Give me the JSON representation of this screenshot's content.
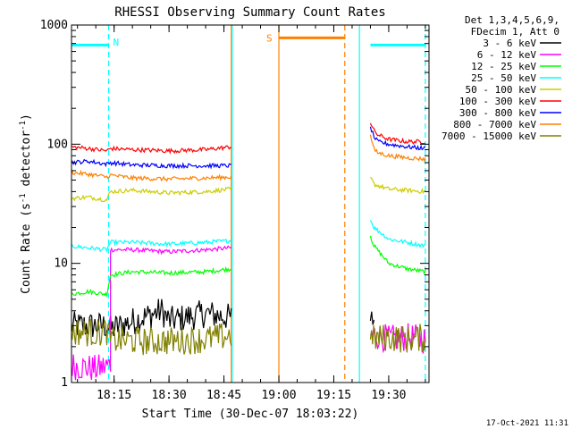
{
  "chart_data": {
    "type": "line",
    "title": "RHESSI Observing Summary Count Rates",
    "xlabel": "Start Time (30-Dec-07 18:03:22)",
    "ylabel_parts": [
      "Count Rate (s",
      "-1",
      " detector",
      "-1",
      ")"
    ],
    "yscale": "log",
    "ylim": [
      1,
      1000
    ],
    "xlim": [
      "18:03:22",
      "19:41:00"
    ],
    "x_ticks": [
      "18:15",
      "18:30",
      "18:45",
      "19:00",
      "19:15",
      "19:30"
    ],
    "y_ticks": [
      "1",
      "10",
      "100",
      "1000"
    ],
    "legend_position": "top-right",
    "legend_header": [
      "Det 1,3,4,5,6,9,",
      "FDecim 1, Att 0"
    ],
    "series": [
      {
        "name": "3 - 6 keV",
        "color": "#000000",
        "segments": [
          {
            "x": [
              "18:03",
              "18:13",
              "18:14",
              "18:28",
              "18:30",
              "18:40",
              "18:47"
            ],
            "y": [
              3.0,
              3.0,
              2.8,
              4.0,
              3.3,
              3.8,
              3.5
            ]
          },
          {
            "x": [
              "19:25",
              "19:26"
            ],
            "y": [
              3.3,
              3.4
            ]
          }
        ]
      },
      {
        "name": "6 - 12 keV",
        "color": "#ff00ff",
        "segments": [
          {
            "x": [
              "18:03",
              "18:10",
              "18:14",
              "18:14",
              "18:20",
              "18:30",
              "18:40",
              "18:47"
            ],
            "y": [
              1.4,
              1.3,
              1.4,
              13.0,
              13.0,
              12.5,
              13.0,
              13.5
            ]
          },
          {
            "x": [
              "19:25",
              "19:27",
              "19:30",
              "19:35",
              "19:40"
            ],
            "y": [
              2.5,
              2.5,
              2.3,
              2.4,
              2.3
            ]
          }
        ]
      },
      {
        "name": "12 - 25 keV",
        "color": "#00ff00",
        "segments": [
          {
            "x": [
              "18:03",
              "18:08",
              "18:13",
              "18:14",
              "18:20",
              "18:30",
              "18:40",
              "18:47"
            ],
            "y": [
              5.5,
              5.8,
              5.5,
              8.0,
              8.5,
              8.3,
              8.5,
              9.0
            ]
          },
          {
            "x": [
              "19:25",
              "19:26",
              "19:30",
              "19:35",
              "19:40"
            ],
            "y": [
              17.0,
              14.0,
              10.0,
              9.0,
              8.5
            ]
          }
        ]
      },
      {
        "name": "25 - 50 keV",
        "color": "#00ffff",
        "segments": [
          {
            "x": [
              "18:03",
              "18:08",
              "18:13",
              "18:14",
              "18:20",
              "18:30",
              "18:40",
              "18:47"
            ],
            "y": [
              14.0,
              13.5,
              13.0,
              15.0,
              15.0,
              14.5,
              15.0,
              15.5
            ]
          },
          {
            "x": [
              "19:25",
              "19:26",
              "19:30",
              "19:35",
              "19:40"
            ],
            "y": [
              23.0,
              20.0,
              16.0,
              15.0,
              14.0
            ]
          }
        ]
      },
      {
        "name": "50 - 100 keV",
        "color": "#cccc00",
        "segments": [
          {
            "x": [
              "18:03",
              "18:08",
              "18:13",
              "18:14",
              "18:20",
              "18:30",
              "18:40",
              "18:47"
            ],
            "y": [
              35.0,
              36.0,
              34.0,
              40.0,
              41.0,
              39.0,
              40.0,
              42.0
            ]
          },
          {
            "x": [
              "19:25",
              "19:26",
              "19:30",
              "19:35",
              "19:40"
            ],
            "y": [
              53.0,
              46.0,
              42.0,
              41.0,
              40.0
            ]
          }
        ]
      },
      {
        "name": "100 - 300 keV",
        "color": "#ff0000",
        "segments": [
          {
            "x": [
              "18:03",
              "18:08",
              "18:13",
              "18:14",
              "18:20",
              "18:30",
              "18:40",
              "18:47"
            ],
            "y": [
              95.0,
              92.0,
              88.0,
              92.0,
              90.0,
              88.0,
              90.0,
              95.0
            ]
          },
          {
            "x": [
              "19:25",
              "19:26",
              "19:27",
              "19:30",
              "19:35",
              "19:40"
            ],
            "y": [
              150.0,
              130.0,
              120.0,
              110.0,
              105.0,
              105.0
            ]
          }
        ]
      },
      {
        "name": "300 - 800 keV",
        "color": "#0000ff",
        "segments": [
          {
            "x": [
              "18:03",
              "18:08",
              "18:13",
              "18:14",
              "18:20",
              "18:30",
              "18:40",
              "18:47"
            ],
            "y": [
              70.0,
              72.0,
              68.0,
              70.0,
              67.0,
              66.0,
              66.0,
              66.0
            ]
          },
          {
            "x": [
              "19:25",
              "19:26",
              "19:27",
              "19:30",
              "19:35",
              "19:40"
            ],
            "y": [
              140.0,
              115.0,
              105.0,
              100.0,
              95.0,
              92.0
            ]
          }
        ]
      },
      {
        "name": "800 - 7000 keV",
        "color": "#ff8000",
        "segments": [
          {
            "x": [
              "18:03",
              "18:08",
              "18:13",
              "18:14",
              "18:20",
              "18:30",
              "18:40",
              "18:47"
            ],
            "y": [
              58.0,
              56.0,
              53.0,
              55.0,
              52.0,
              51.0,
              52.0,
              53.0
            ]
          },
          {
            "x": [
              "19:25",
              "19:26",
              "19:27",
              "19:30",
              "19:35",
              "19:40"
            ],
            "y": [
              120.0,
              90.0,
              85.0,
              80.0,
              77.0,
              75.0
            ]
          }
        ]
      },
      {
        "name": "7000 - 15000 keV",
        "color": "#808000",
        "segments": [
          {
            "x": [
              "18:03",
              "18:10",
              "18:13",
              "18:14",
              "18:25",
              "18:40",
              "18:47"
            ],
            "y": [
              2.7,
              2.6,
              2.7,
              2.3,
              2.2,
              2.3,
              2.5
            ]
          },
          {
            "x": [
              "19:25",
              "19:30",
              "19:35",
              "19:40"
            ],
            "y": [
              2.3,
              2.4,
              2.3,
              2.4
            ]
          }
        ]
      }
    ],
    "markers": [
      {
        "type": "bar",
        "label": "",
        "color": "#00ffff",
        "x_start": "18:03",
        "x_end": "18:13:30",
        "y": 680
      },
      {
        "type": "bar",
        "label": "S",
        "color": "#ff8000",
        "x_start": "19:00",
        "x_end": "19:18",
        "y": 780
      },
      {
        "type": "bar",
        "label": "",
        "color": "#00ffff",
        "x_start": "19:25",
        "x_end": "19:40",
        "y": 680
      }
    ],
    "vlines": [
      {
        "x": "18:13:30",
        "color": "#00ffff",
        "style": "dashed",
        "label": "N"
      },
      {
        "x": "18:47",
        "color": "#ff8000",
        "style": "solid",
        "label": ""
      },
      {
        "x": "18:47:15",
        "color": "#00ffff",
        "style": "solid",
        "label": ""
      },
      {
        "x": "19:00",
        "color": "#ff8000",
        "style": "solid",
        "label": ""
      },
      {
        "x": "19:18",
        "color": "#ff8000",
        "style": "dashed",
        "label": ""
      },
      {
        "x": "19:22",
        "color": "#00ffff",
        "style": "solid",
        "label": ""
      },
      {
        "x": "19:40",
        "color": "#00ffff",
        "style": "dashed",
        "label": ""
      }
    ]
  },
  "footer_timestamp": "17-Oct-2021 11:31"
}
